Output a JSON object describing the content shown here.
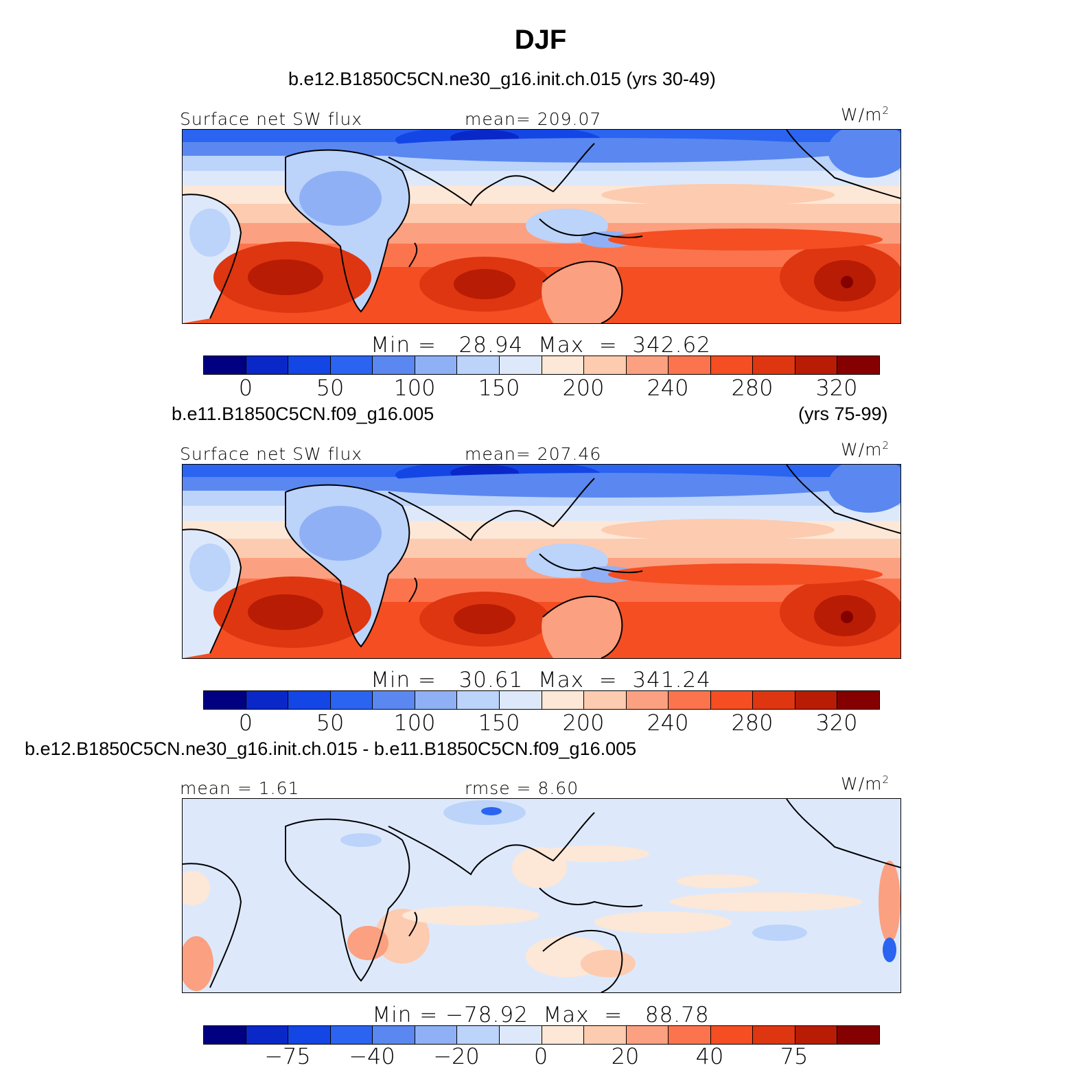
{
  "figure": {
    "title": "DJF"
  },
  "panels": [
    {
      "case_label": "b.e12.B1850C5CN.ne30_g16.init.ch.015 (yrs 30-49)",
      "years_label": "",
      "left_label": "Surface net SW flux",
      "center_label": "mean= 209.07",
      "units_label": "W/m",
      "units_exp": "2",
      "minmax_label": "Min =   28.94  Max  =  342.62",
      "colorbar_colors": [
        "#000080",
        "#0a28c8",
        "#1446e6",
        "#2b64f0",
        "#5a88f0",
        "#8fb0f5",
        "#bcd3fa",
        "#dde9fb",
        "#fde7d6",
        "#fccbb0",
        "#fba080",
        "#fb744e",
        "#f44e22",
        "#de3610",
        "#b81c04",
        "#850000"
      ],
      "colorbar_ticks": [
        "0",
        "50",
        "100",
        "150",
        "200",
        "240",
        "280",
        "320"
      ],
      "pattern": "abs"
    },
    {
      "case_label": "b.e11.B1850C5CN.f09_g16.005",
      "years_label": "(yrs 75-99)",
      "left_label": "Surface net SW flux",
      "center_label": "mean= 207.46",
      "units_label": "W/m",
      "units_exp": "2",
      "minmax_label": "Min =   30.61  Max  =  341.24",
      "colorbar_colors": [
        "#000080",
        "#0a28c8",
        "#1446e6",
        "#2b64f0",
        "#5a88f0",
        "#8fb0f5",
        "#bcd3fa",
        "#dde9fb",
        "#fde7d6",
        "#fccbb0",
        "#fba080",
        "#fb744e",
        "#f44e22",
        "#de3610",
        "#b81c04",
        "#850000"
      ],
      "colorbar_ticks": [
        "0",
        "50",
        "100",
        "150",
        "200",
        "240",
        "280",
        "320"
      ],
      "pattern": "abs"
    },
    {
      "case_label": "b.e12.B1850C5CN.ne30_g16.init.ch.015 - b.e11.B1850C5CN.f09_g16.005",
      "years_label": "",
      "left_label": "mean =   1.61",
      "center_label": "rmse =   8.60",
      "units_label": "W/m",
      "units_exp": "2",
      "minmax_label": "Min = −78.92  Max  =   88.78",
      "colorbar_colors": [
        "#000080",
        "#0a28c8",
        "#1446e6",
        "#2b64f0",
        "#5a88f0",
        "#8fb0f5",
        "#bcd3fa",
        "#dde9fb",
        "#fde7d6",
        "#fccbb0",
        "#fba080",
        "#fb744e",
        "#f44e22",
        "#de3610",
        "#b81c04",
        "#850000"
      ],
      "colorbar_ticks": [
        "−75",
        "−40",
        "−20",
        "0",
        "20",
        "40",
        "75"
      ],
      "pattern": "diff"
    }
  ]
}
